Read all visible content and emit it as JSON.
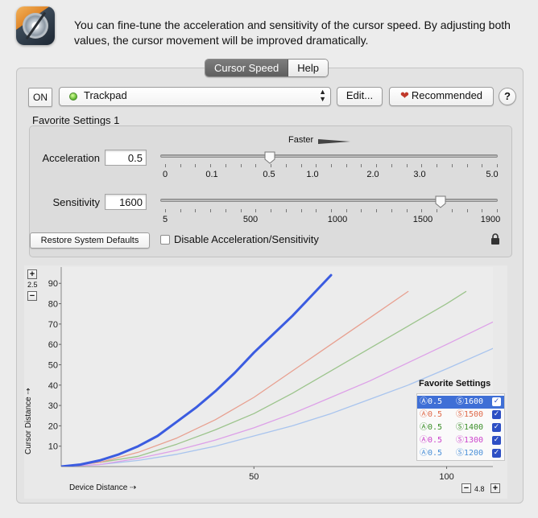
{
  "header": {
    "description": "You can fine-tune the acceleration and sensitivity of the cursor speed. By adjusting both values, the cursor movement will be improved dramatically."
  },
  "tabs": [
    {
      "label": "Cursor Speed",
      "active": true
    },
    {
      "label": "Help",
      "active": false
    }
  ],
  "toolbar": {
    "on_label": "ON",
    "device": "Trackpad",
    "edit_label": "Edit...",
    "recommended_label": "Recommended",
    "help_label": "?"
  },
  "favorite": {
    "title": "Favorite Settings 1",
    "faster_label": "Faster",
    "acceleration": {
      "label": "Acceleration",
      "value": "0.5",
      "ticks": [
        "0",
        "0.1",
        "0.5",
        "1.0",
        "2.0",
        "3.0",
        "5.0"
      ]
    },
    "sensitivity": {
      "label": "Sensitivity",
      "value": "1600",
      "ticks": [
        "5",
        "500",
        "1000",
        "1500",
        "1900"
      ]
    },
    "restore_label": "Restore System Defaults",
    "disable_label": "Disable Acceleration/Sensitivity",
    "disable_checked": false
  },
  "graph": {
    "zoom_y": "2.5",
    "zoom_x": "4.8",
    "legend_title": "Favorite Settings",
    "legend": [
      {
        "a": "Ⓐ0.5",
        "s": "Ⓢ1600",
        "color": "#3b5ce0",
        "selected": true,
        "checked": true
      },
      {
        "a": "Ⓐ0.5",
        "s": "Ⓢ1500",
        "color": "#e06a4a",
        "selected": false,
        "checked": true
      },
      {
        "a": "Ⓐ0.5",
        "s": "Ⓢ1400",
        "color": "#3c8f2a",
        "selected": false,
        "checked": true
      },
      {
        "a": "Ⓐ0.5",
        "s": "Ⓢ1300",
        "color": "#cc44cc",
        "selected": false,
        "checked": true
      },
      {
        "a": "Ⓐ0.5",
        "s": "Ⓢ1200",
        "color": "#4a90d8",
        "selected": false,
        "checked": true
      }
    ]
  },
  "chart_data": {
    "type": "line",
    "xlabel": "Device Distance ⇢",
    "ylabel": "Cursor Distance ⇢",
    "xlim": [
      0,
      112
    ],
    "ylim": [
      0,
      98
    ],
    "xticks": [
      50,
      100
    ],
    "yticks": [
      10,
      20,
      30,
      40,
      50,
      60,
      70,
      80,
      90
    ],
    "series": [
      {
        "name": "Ⓐ0.5 Ⓢ1600",
        "color": "#3b5ce0",
        "x": [
          0,
          5,
          10,
          15,
          20,
          25,
          30,
          35,
          40,
          45,
          50,
          55,
          60,
          65,
          70
        ],
        "y": [
          0,
          1,
          3,
          6,
          10,
          15,
          22,
          29,
          37,
          46,
          56,
          65,
          74,
          84,
          94
        ]
      },
      {
        "name": "Ⓐ0.5 Ⓢ1500",
        "color": "#e8a090",
        "x": [
          0,
          10,
          20,
          30,
          40,
          50,
          60,
          70,
          80,
          90
        ],
        "y": [
          0,
          2,
          7,
          14,
          23,
          34,
          47,
          60,
          73,
          86
        ]
      },
      {
        "name": "Ⓐ0.5 Ⓢ1400",
        "color": "#9cc48c",
        "x": [
          0,
          10,
          20,
          30,
          40,
          50,
          60,
          70,
          80,
          90,
          100,
          105
        ],
        "y": [
          0,
          2,
          5,
          11,
          18,
          26,
          36,
          47,
          58,
          69,
          80,
          86
        ]
      },
      {
        "name": "Ⓐ0.5 Ⓢ1300",
        "color": "#dda0e8",
        "x": [
          0,
          10,
          20,
          30,
          40,
          50,
          60,
          70,
          80,
          90,
          100,
          112
        ],
        "y": [
          0,
          1,
          4,
          8,
          13,
          19,
          26,
          34,
          42,
          51,
          60,
          71
        ]
      },
      {
        "name": "Ⓐ0.5 Ⓢ1200",
        "color": "#a8c4ee",
        "x": [
          0,
          10,
          20,
          30,
          40,
          50,
          60,
          70,
          80,
          90,
          100,
          112
        ],
        "y": [
          0,
          1,
          3,
          6,
          10,
          15,
          20,
          26,
          33,
          40,
          48,
          58
        ]
      }
    ]
  }
}
